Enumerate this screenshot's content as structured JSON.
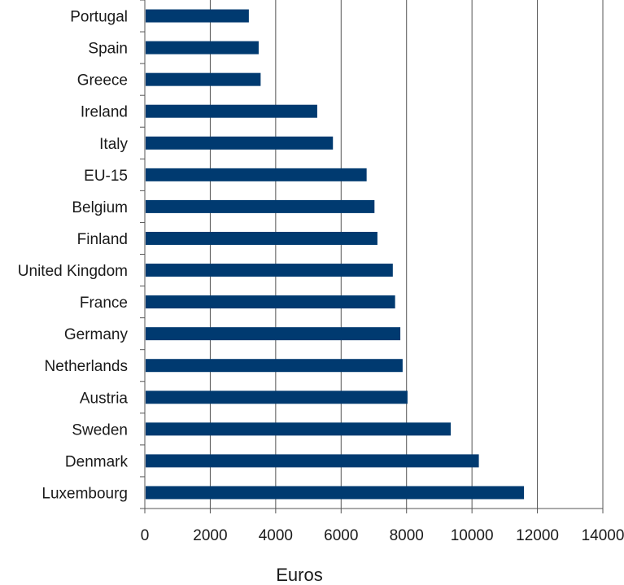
{
  "chart_data": {
    "type": "bar",
    "orientation": "horizontal",
    "categories": [
      "Portugal",
      "Spain",
      "Greece",
      "Ireland",
      "Italy",
      "EU-15",
      "Belgium",
      "Finland",
      "United Kingdom",
      "France",
      "Germany",
      "Netherlands",
      "Austria",
      "Sweden",
      "Denmark",
      "Luxembourg"
    ],
    "values": [
      3180,
      3480,
      3540,
      5270,
      5750,
      6780,
      7020,
      7110,
      7580,
      7650,
      7810,
      7880,
      8030,
      9350,
      10210,
      11590
    ],
    "xlabel": "Euros",
    "xlim": [
      0,
      14000
    ],
    "xticks": [
      "0",
      "2000",
      "4000",
      "6000",
      "8000",
      "10000",
      "12000",
      "14000"
    ],
    "grid": "vertical",
    "bar_color": "#003a70"
  }
}
